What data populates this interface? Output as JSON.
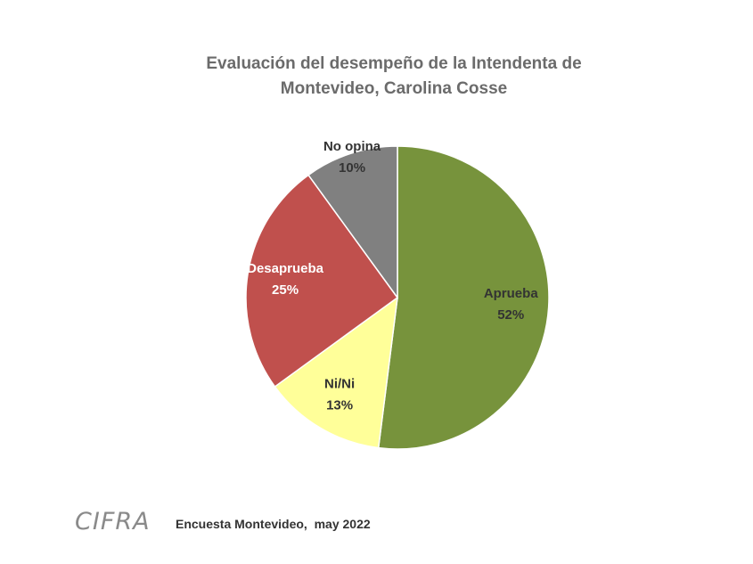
{
  "chart_data": {
    "type": "pie",
    "title": "Evaluación del desempeño de la Intendenta de Montevideo, Carolina Cosse",
    "categories": [
      "Aprueba",
      "Ni/Ni",
      "Desaprueba",
      "No opina"
    ],
    "values": [
      52,
      13,
      25,
      10
    ],
    "value_labels": [
      "52%",
      "13%",
      "25%",
      "10%"
    ],
    "colors": [
      "#77933c",
      "#ffff99",
      "#c0504d",
      "#808080"
    ],
    "label_colors": [
      "#333333",
      "#333333",
      "#ffffff",
      "#333333"
    ],
    "logo": "CIFRA",
    "source": "Encuesta Montevideo,  may 2022"
  }
}
